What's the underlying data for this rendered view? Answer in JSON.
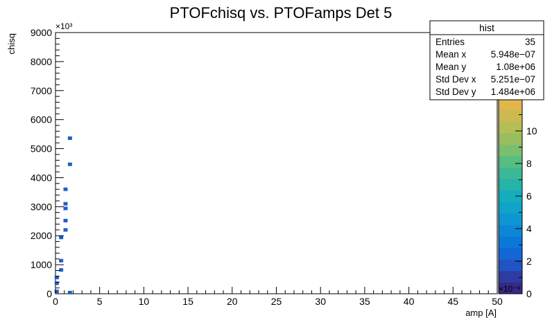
{
  "chart_data": {
    "type": "heatmap",
    "title": "PTOFchisq vs. PTOFamps Det 5",
    "xlabel": "amp [A]",
    "ylabel": "chisq",
    "x_multiplier_label": "×10⁻⁶",
    "y_multiplier_label": "×10³",
    "xlim": [
      0,
      50
    ],
    "ylim": [
      0,
      9000
    ],
    "x_ticks": [
      0,
      5,
      10,
      15,
      20,
      25,
      30,
      35,
      40,
      45,
      50
    ],
    "y_ticks": [
      0,
      1000,
      2000,
      3000,
      4000,
      5000,
      6000,
      7000,
      8000,
      9000
    ],
    "z_ticks": [
      0,
      2,
      4,
      6,
      8,
      10
    ],
    "zlim": [
      0,
      12
    ],
    "palette": [
      "#352a87",
      "#2d3ca1",
      "#1f54c2",
      "#1366d6",
      "#0b77d9",
      "#0c87d6",
      "#0f96d2",
      "#11a2c8",
      "#15acbe",
      "#26b3a8",
      "#3bb894",
      "#57bd82",
      "#79bf6e",
      "#98be5e",
      "#b5bd55",
      "#cdb94f",
      "#e0b64d"
    ],
    "cells": [
      {
        "x": 0.1,
        "y": 80,
        "z": 1
      },
      {
        "x": 0.1,
        "y": 360,
        "z": 1
      },
      {
        "x": 0.1,
        "y": 560,
        "z": 1
      },
      {
        "x": 0.6,
        "y": 820,
        "z": 1
      },
      {
        "x": 0.6,
        "y": 1140,
        "z": 1
      },
      {
        "x": 0.6,
        "y": 1940,
        "z": 1
      },
      {
        "x": 1.1,
        "y": 2200,
        "z": 1
      },
      {
        "x": 1.1,
        "y": 2520,
        "z": 1
      },
      {
        "x": 1.1,
        "y": 2940,
        "z": 1
      },
      {
        "x": 1.1,
        "y": 3100,
        "z": 1
      },
      {
        "x": 1.1,
        "y": 3600,
        "z": 1
      },
      {
        "x": 1.6,
        "y": 4460,
        "z": 1
      },
      {
        "x": 1.6,
        "y": 5360,
        "z": 1
      },
      {
        "x": 1.6,
        "y": 40,
        "z": 1
      }
    ],
    "stats": {
      "title": "hist",
      "rows": [
        {
          "label": "Entries",
          "value": "35"
        },
        {
          "label": "Mean x",
          "value": "5.948e−07"
        },
        {
          "label": "Mean y",
          "value": "1.08e+06"
        },
        {
          "label": "Std Dev x",
          "value": "5.251e−07"
        },
        {
          "label": "Std Dev y",
          "value": "1.484e+06"
        }
      ]
    }
  }
}
